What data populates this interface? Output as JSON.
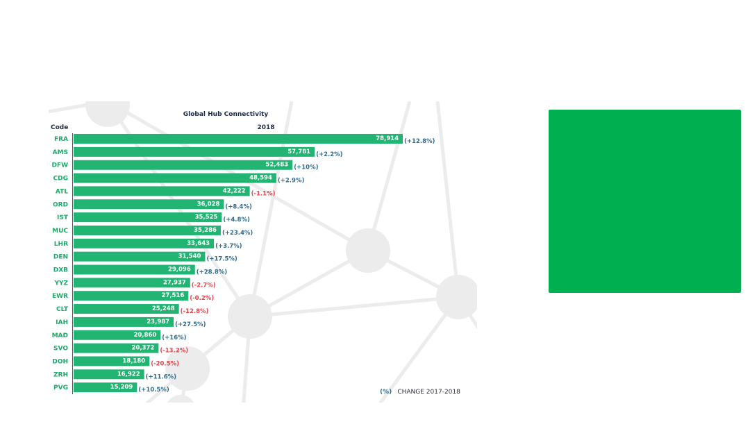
{
  "chart_data": {
    "type": "bar",
    "orientation": "horizontal",
    "title": "Global Hub Connectivity",
    "category_header": "Code",
    "series_header": "2018",
    "categories": [
      "FRA",
      "AMS",
      "DFW",
      "CDG",
      "ATL",
      "ORD",
      "IST",
      "MUC",
      "LHR",
      "DEN",
      "DXB",
      "YYZ",
      "EWR",
      "CLT",
      "IAH",
      "MAD",
      "SVO",
      "DOH",
      "ZRH",
      "PVG"
    ],
    "values": [
      78914,
      57781,
      52483,
      48594,
      42222,
      36028,
      35525,
      35286,
      33643,
      31540,
      29096,
      27937,
      27516,
      25248,
      23987,
      20860,
      20372,
      18180,
      16922,
      15209
    ],
    "value_labels": [
      "78,914",
      "57,781",
      "52,483",
      "48,594",
      "42,222",
      "36,028",
      "35,525",
      "35,286",
      "33,643",
      "31,540",
      "29,096",
      "27,937",
      "27,516",
      "25,248",
      "23,987",
      "20,860",
      "20,372",
      "18,180",
      "16,922",
      "15,209"
    ],
    "change_labels": [
      "(+12.8%)",
      "(+2.2%)",
      "(+10%)",
      "(+2.9%)",
      "(-1.1%)",
      "(+8.4%)",
      "(+4.8%)",
      "(+23.4%)",
      "(+3.7%)",
      "(+17.5%)",
      "(+28.8%)",
      "(-2.7%)",
      "(-0.2%)",
      "(-12.8%)",
      "(+27.5%)",
      "(+16%)",
      "(-13.2%)",
      "(-20.5%)",
      "(+11.6%)",
      "(+10.5%)"
    ],
    "legend": {
      "marker": "(%)",
      "text": "CHANGE 2017-2018"
    },
    "colors": {
      "bar": "#22b473",
      "code": "#1fa86a",
      "positive": "#2f6c8f",
      "negative": "#e8434a",
      "title": "#1c2b45"
    }
  },
  "colors": {
    "side_panel": "#00b050",
    "background_network": "#ececec"
  }
}
